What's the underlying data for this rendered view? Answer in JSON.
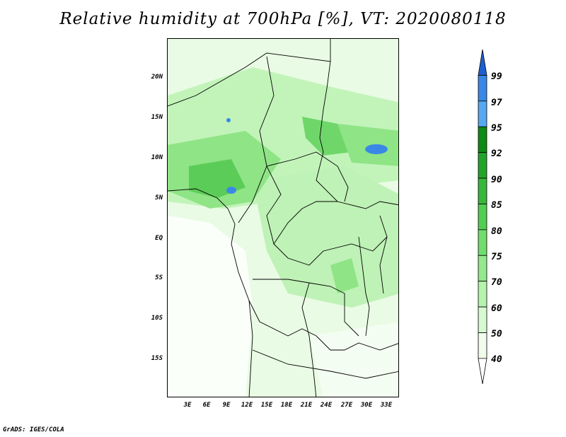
{
  "title": "Relative humidity at 700hPa [%], VT: 2020080118",
  "credit": "GrADS: IGES/COLA",
  "map": {
    "lat_labels": [
      "20N",
      "15N",
      "10N",
      "5N",
      "EQ",
      "5S",
      "10S",
      "15S"
    ],
    "lon_labels": [
      "3E",
      "6E",
      "9E",
      "12E",
      "15E",
      "18E",
      "21E",
      "24E",
      "27E",
      "30E",
      "33E"
    ]
  },
  "colorbar": {
    "labels": [
      "99",
      "97",
      "95",
      "92",
      "90",
      "85",
      "80",
      "75",
      "70",
      "60",
      "50",
      "40"
    ],
    "colors": [
      "#1e5fd0",
      "#3a88e6",
      "#56a8f0",
      "#0f8a14",
      "#22a428",
      "#37b83a",
      "#52ce52",
      "#70dd6c",
      "#93e98c",
      "#b6f3ae",
      "#d6f9d0",
      "#effdea"
    ]
  }
}
